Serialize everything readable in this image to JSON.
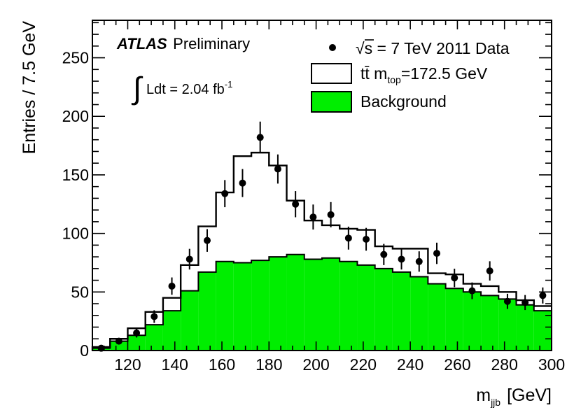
{
  "chart_data": {
    "type": "histogram",
    "title": "",
    "xlabel": "m",
    "xlabel_sub": "jjb",
    "xlabel_unit": "[GeV]",
    "ylabel": "Entries / 7.5 GeV",
    "xlim": [
      105,
      300
    ],
    "ylim": [
      0,
      282
    ],
    "bin_width": 7.5,
    "x_ticks": [
      120,
      140,
      160,
      180,
      200,
      220,
      240,
      260,
      280,
      300
    ],
    "y_ticks": [
      0,
      50,
      100,
      150,
      200,
      250
    ],
    "bin_edges": [
      105,
      112.5,
      120,
      127.5,
      135,
      142.5,
      150,
      157.5,
      165,
      172.5,
      180,
      187.5,
      195,
      202.5,
      210,
      217.5,
      225,
      232.5,
      240,
      247.5,
      255,
      262.5,
      270,
      277.5,
      285,
      292.5,
      300
    ],
    "series": [
      {
        "name": "Background",
        "kind": "filled-histogram",
        "color": "#00ee00",
        "values": [
          2,
          8,
          13,
          22,
          34,
          51,
          67,
          76,
          75,
          77,
          80,
          82,
          78,
          79,
          76,
          73,
          70,
          67,
          63,
          57,
          53,
          50,
          47,
          44,
          39,
          34
        ]
      },
      {
        "name": "ttbar m_top=172.5 GeV",
        "kind": "step-histogram",
        "color": "#000000",
        "values": [
          3,
          10,
          19,
          33,
          45,
          73,
          106,
          135,
          166,
          169,
          158,
          128,
          111,
          107,
          104,
          103,
          89,
          87,
          87,
          66,
          65,
          57,
          55,
          50,
          43,
          38
        ]
      },
      {
        "name": "2011 Data",
        "kind": "points-with-errors",
        "color": "#000000",
        "x": [
          108.75,
          116.25,
          123.75,
          131.25,
          138.75,
          146.25,
          153.75,
          161.25,
          168.75,
          176.25,
          183.75,
          191.25,
          198.75,
          206.25,
          213.75,
          221.25,
          228.75,
          236.25,
          243.75,
          251.25,
          258.75,
          266.25,
          273.75,
          281.25,
          288.75,
          296.25
        ],
        "y": [
          2,
          8,
          15,
          29,
          55,
          78,
          94,
          134,
          143,
          182,
          155,
          125,
          114,
          116,
          96,
          95,
          82,
          78,
          76,
          83,
          62,
          51,
          68,
          42,
          41,
          47
        ]
      }
    ],
    "legend": {
      "position": "top-right",
      "entries": [
        {
          "marker": "point",
          "label_prefix": "√",
          "label_overline": "s",
          "label_rest": " = 7 TeV 2011 Data"
        },
        {
          "marker": "open-box",
          "label_main": "t",
          "label_bar": "t̄",
          "label_m": " m",
          "label_sub": "top",
          "label_rest": "=172.5 GeV"
        },
        {
          "marker": "green-box",
          "label": "Background"
        }
      ]
    },
    "annotations": {
      "atlas": "ATLAS",
      "preliminary": "Preliminary",
      "lumi_integral": "∫",
      "lumi_text": "Ldt = 2.04 fb",
      "lumi_sup": "-1"
    },
    "colors": {
      "background": "#00ee00",
      "line": "#000000"
    }
  }
}
